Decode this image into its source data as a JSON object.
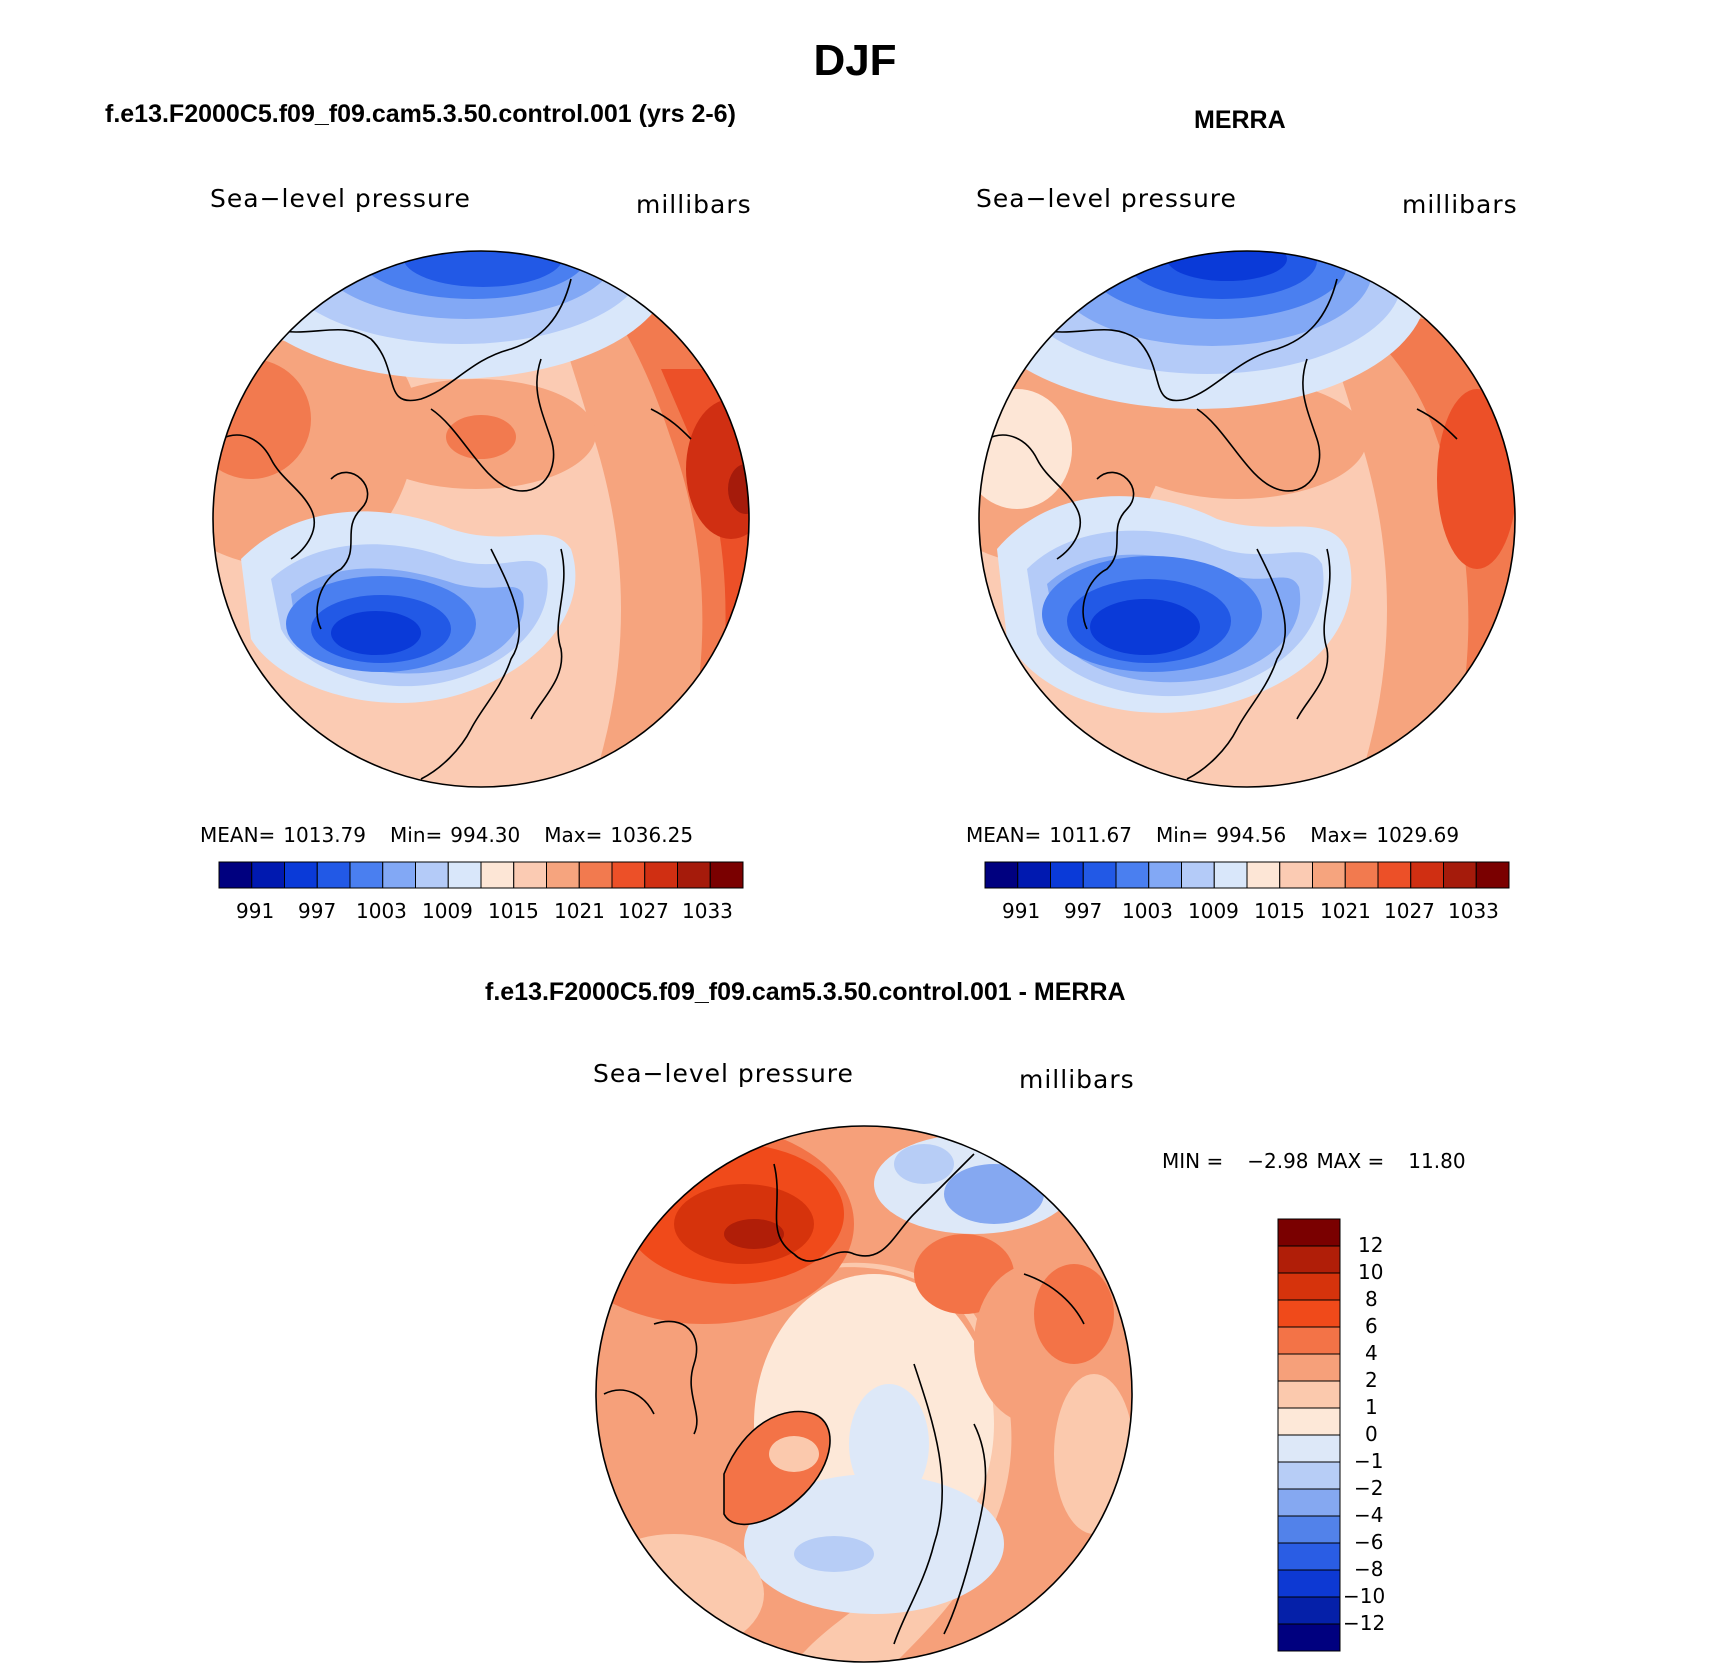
{
  "title": "DJF",
  "panels": [
    {
      "id": "model",
      "title": "f.e13.F2000C5.f09_f09.cam5.3.50.control.001 (yrs 2-6)",
      "left_label": "Sea−level pressure",
      "right_label": "millibars",
      "stats": {
        "mean_label": "MEAN=",
        "mean": "1013.79",
        "min_label": "Min=",
        "min": "994.30",
        "max_label": "Max=",
        "max": "1036.25"
      }
    },
    {
      "id": "merra",
      "title": "MERRA",
      "left_label": "Sea−level pressure",
      "right_label": "millibars",
      "stats": {
        "mean_label": "MEAN=",
        "mean": "1011.67",
        "min_label": "Min=",
        "min": "994.56",
        "max_label": "Max=",
        "max": "1029.69"
      }
    },
    {
      "id": "diff",
      "title": "f.e13.F2000C5.f09_f09.cam5.3.50.control.001 - MERRA",
      "left_label": "Sea−level pressure",
      "right_label": "millibars",
      "stats": {
        "min_label": "MIN =",
        "min": "−2.98",
        "max_label": "MAX =",
        "max": "11.80"
      }
    }
  ],
  "colorbars": {
    "absolute": {
      "colors": [
        "#00007f",
        "#0019b0",
        "#0a3ad8",
        "#2259e6",
        "#4a7ff0",
        "#82a8f5",
        "#b4cbf8",
        "#d9e7fa",
        "#fde6d6",
        "#fbcbb3",
        "#f6a47e",
        "#f27a4f",
        "#ec5028",
        "#d02f12",
        "#a51b0b",
        "#7a0000"
      ],
      "tick_labels": [
        "991",
        "997",
        "1003",
        "1009",
        "1015",
        "1021",
        "1027",
        "1033"
      ]
    },
    "difference": {
      "colors": [
        "#7a0000",
        "#b01e08",
        "#d6330c",
        "#f04a1a",
        "#f37347",
        "#f6a07a",
        "#fbc9ad",
        "#fde8d8",
        "#dde8f8",
        "#b7cdf6",
        "#85a8f1",
        "#5282ea",
        "#2a5de4",
        "#0d39d3",
        "#0520a9",
        "#00007f"
      ],
      "tick_labels": [
        "12",
        "10",
        "8",
        "6",
        "4",
        "2",
        "1",
        "0",
        "−1",
        "−2",
        "−4",
        "−6",
        "−8",
        "−10",
        "−12"
      ]
    }
  },
  "chart_data": [
    {
      "type": "polar-map",
      "title": "f.e13.F2000C5.f09_f09.cam5.3.50.control.001 (yrs 2-6)",
      "variable": "Sea-level pressure",
      "units": "millibars",
      "mean": 1013.79,
      "min": 994.3,
      "max": 1036.25,
      "levels": [
        991,
        994,
        997,
        1000,
        1003,
        1006,
        1009,
        1012,
        1015,
        1018,
        1021,
        1024,
        1027,
        1030,
        1033
      ]
    },
    {
      "type": "polar-map",
      "title": "MERRA",
      "variable": "Sea-level pressure",
      "units": "millibars",
      "mean": 1011.67,
      "min": 994.56,
      "max": 1029.69,
      "levels": [
        991,
        994,
        997,
        1000,
        1003,
        1006,
        1009,
        1012,
        1015,
        1018,
        1021,
        1024,
        1027,
        1030,
        1033
      ]
    },
    {
      "type": "polar-map",
      "title": "f.e13.F2000C5.f09_f09.cam5.3.50.control.001 - MERRA",
      "variable": "Sea-level pressure",
      "units": "millibars",
      "min": -2.98,
      "max": 11.8,
      "levels": [
        -12,
        -10,
        -8,
        -6,
        -4,
        -2,
        -1,
        0,
        1,
        2,
        4,
        6,
        8,
        10,
        12
      ]
    }
  ]
}
